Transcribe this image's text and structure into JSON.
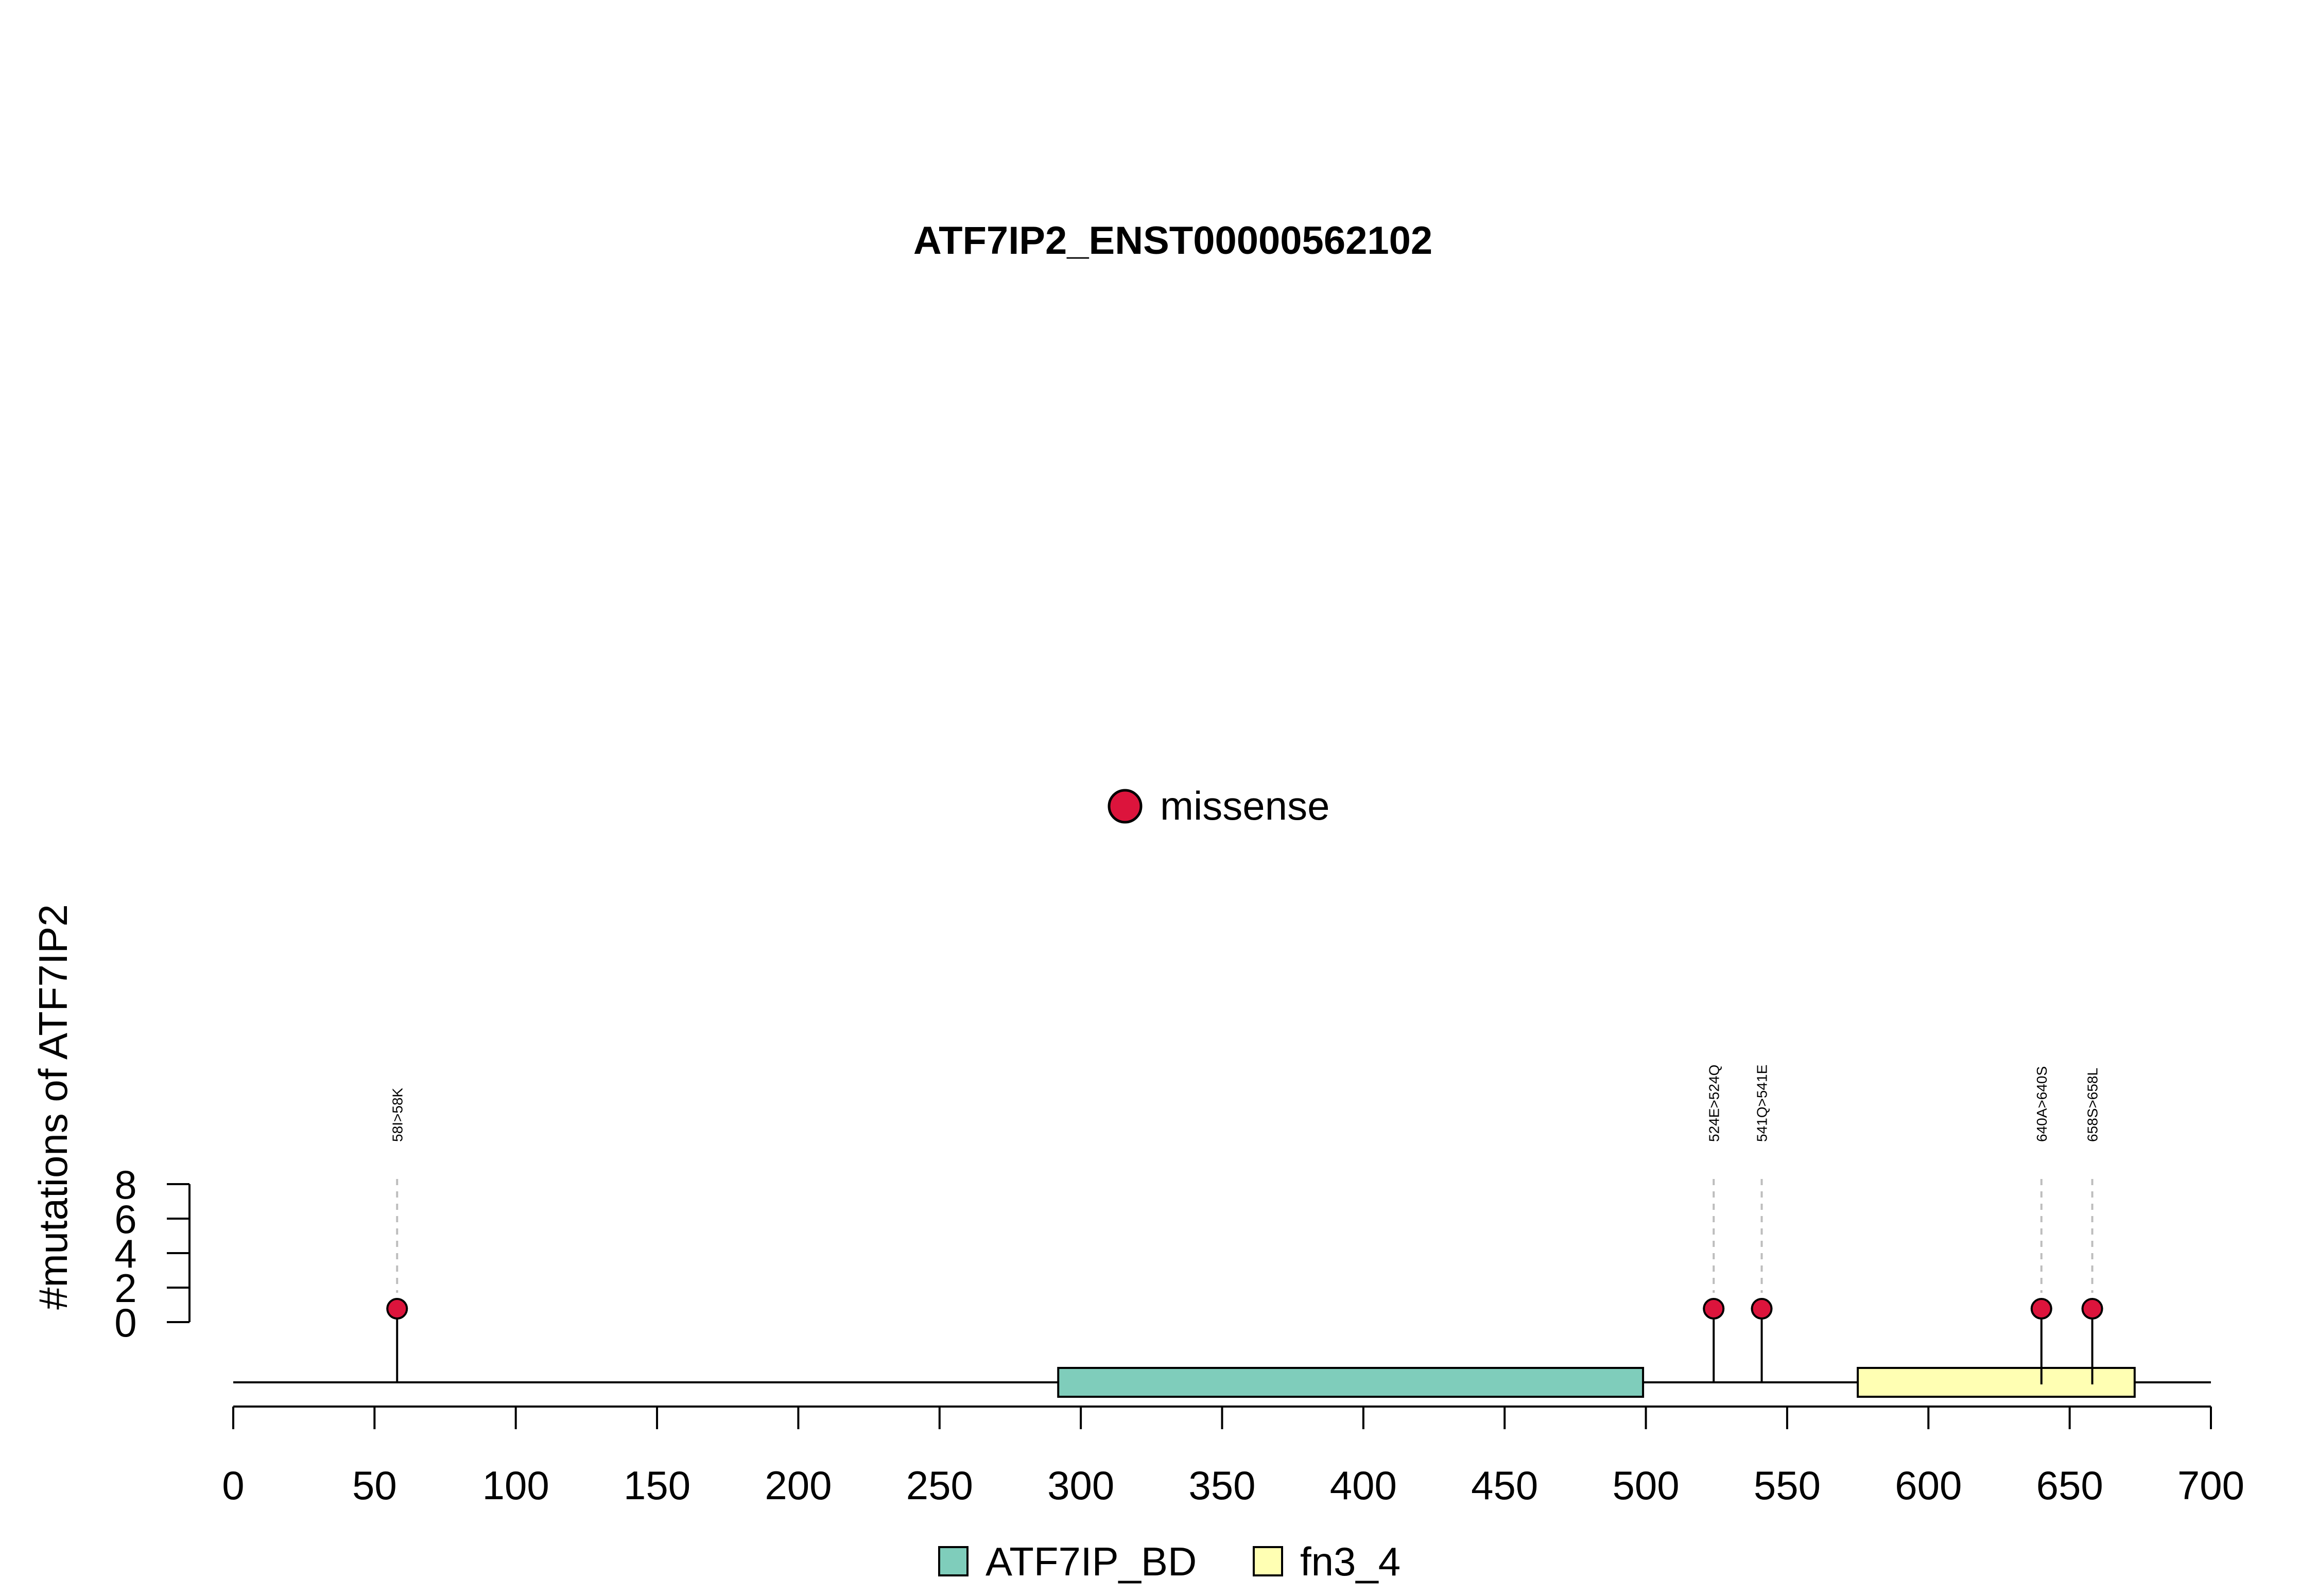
{
  "chart_data": {
    "type": "lollipop",
    "title": "ATF7IP2_ENST00000562102",
    "ylabel": "#mutations of ATF7IP2",
    "xlim": [
      0,
      700
    ],
    "ylim": [
      0,
      8
    ],
    "x_ticks": [
      0,
      50,
      100,
      150,
      200,
      250,
      300,
      350,
      400,
      450,
      500,
      550,
      600,
      650,
      700
    ],
    "y_ticks": [
      0,
      2,
      4,
      6,
      8
    ],
    "mutation_legend": [
      {
        "label": "missense",
        "color": "#DC143C"
      }
    ],
    "mutations": [
      {
        "position": 58,
        "label": "58I>58K",
        "count": 1,
        "type": "missense"
      },
      {
        "position": 524,
        "label": "524E>524Q",
        "count": 1,
        "type": "missense"
      },
      {
        "position": 541,
        "label": "541Q>541E",
        "count": 1,
        "type": "missense"
      },
      {
        "position": 640,
        "label": "640A>640S",
        "count": 1,
        "type": "missense"
      },
      {
        "position": 658,
        "label": "658S>658L",
        "count": 1,
        "type": "missense"
      }
    ],
    "domains": [
      {
        "name": "ATF7IP_BD",
        "start": 292,
        "end": 499,
        "color": "#7FCDBB"
      },
      {
        "name": "fn3_4",
        "start": 575,
        "end": 673,
        "color": "#FFFFB3"
      }
    ],
    "protein_length": 700
  }
}
